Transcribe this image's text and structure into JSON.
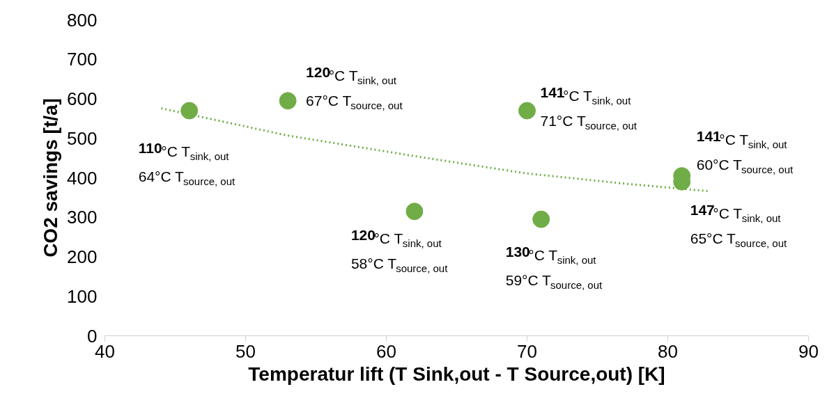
{
  "chart_data": {
    "type": "scatter",
    "xlabel": "Temperatur lift (T Sink,out - T Source,out) [K]",
    "ylabel": "CO2 savings [t/a]",
    "xlim": [
      40,
      90
    ],
    "ylim": [
      0,
      800
    ],
    "xticks": [
      40,
      50,
      60,
      70,
      80,
      90
    ],
    "yticks": [
      0,
      100,
      200,
      300,
      400,
      500,
      600,
      700,
      800
    ],
    "series": [
      {
        "color": "#70ad47",
        "marker": "circle",
        "x": [
          46,
          53,
          62,
          70,
          71,
          81,
          81
        ],
        "values": [
          570,
          595,
          315,
          570,
          295,
          405,
          390
        ]
      },
      {
        "type": "line",
        "color": "#70ad47",
        "line_style": "dotted",
        "x": [
          44,
          53,
          62,
          70,
          77,
          83
        ],
        "values": [
          576,
          507,
          455,
          411,
          385,
          366
        ]
      }
    ],
    "annotations": [
      {
        "text": "110°C T$_{sink, out}$\n64°C T$_{source, out}$",
        "x": 46,
        "y": 570
      },
      {
        "text": "120°C T$_{sink, out}$\n67°C T$_{source, out}$",
        "x": 53,
        "y": 595
      },
      {
        "text": "120°C T$_{sink, out}$\n58°C T$_{source, out}$",
        "x": 62,
        "y": 315
      },
      {
        "text": "141°C T$_{sink, out}$\n71°C T$_{source, out}$",
        "x": 70,
        "y": 570
      },
      {
        "text": "130°C T$_{sink, out}$\n59°C T$_{source, out}$",
        "x": 71,
        "y": 295
      },
      {
        "text": "141°C T$_{sink, out}$\n60°C T$_{source, out}$",
        "x": 81,
        "y": 405
      },
      {
        "text": "147°C T$_{sink, out}$\n65°C T$_{source, out}$",
        "x": 81,
        "y": 390
      }
    ]
  }
}
